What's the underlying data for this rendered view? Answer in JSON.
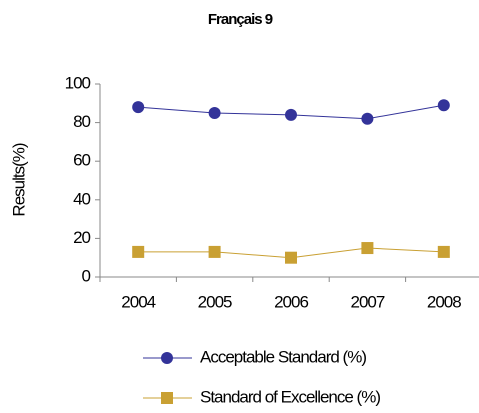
{
  "chart_data": {
    "type": "line",
    "title": "Français 9",
    "y_label": "Results(%)",
    "categories": [
      "2004",
      "2005",
      "2006",
      "2007",
      "2008"
    ],
    "series": [
      {
        "name": "Acceptable Standard (%)",
        "color": "#333399",
        "marker": "circle",
        "values": [
          88,
          85,
          84,
          82,
          89
        ]
      },
      {
        "name": "Standard of Excellence (%)",
        "color": "#c9a033",
        "marker": "square",
        "values": [
          13,
          13,
          10,
          15,
          13
        ]
      }
    ],
    "ylim": [
      0,
      100
    ],
    "yticks": [
      0,
      20,
      40,
      60,
      80,
      100
    ],
    "grid": false
  }
}
